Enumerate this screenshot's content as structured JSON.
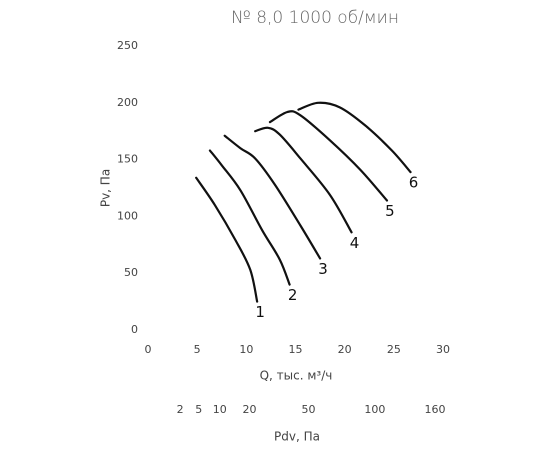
{
  "chart_data": {
    "type": "line",
    "title": "№ 8,0 1000 об/мин",
    "x_label": "Q, тыс. м³/ч",
    "y_label": "Pv, Па",
    "x2_label": "Pdv, Па",
    "xlim": [
      0,
      30
    ],
    "xticks": [
      0,
      5,
      10,
      15,
      20,
      25,
      30
    ],
    "ylim": [
      0,
      250
    ],
    "yticks": [
      0,
      50,
      100,
      150,
      200,
      250
    ],
    "x2scale": "sqrt",
    "x2lim": [
      0,
      169
    ],
    "x2ticks": [
      2,
      5,
      10,
      20,
      50,
      100,
      160
    ],
    "series": [
      {
        "name": "1",
        "color": "#111111",
        "x": [
          4.9,
          6.8,
          8.9,
          10.4,
          11.1
        ],
        "values": [
          134,
          110,
          79,
          53,
          25
        ]
      },
      {
        "name": "2",
        "color": "#111111",
        "x": [
          6.3,
          7.5,
          9.4,
          11.6,
          13.4,
          14.4
        ],
        "values": [
          158,
          145,
          123,
          88,
          62,
          40
        ]
      },
      {
        "name": "3",
        "color": "#111111",
        "x": [
          7.8,
          9.4,
          10.9,
          12.9,
          15.5,
          17.5
        ],
        "values": [
          171,
          160,
          151,
          128,
          92,
          63
        ]
      },
      {
        "name": "4",
        "color": "#111111",
        "x": [
          10.9,
          12.2,
          13.4,
          15.5,
          18.5,
          20.7
        ],
        "values": [
          175,
          178,
          172,
          151,
          119,
          86
        ]
      },
      {
        "name": "5",
        "color": "#111111",
        "x": [
          12.4,
          14.2,
          15.5,
          18.5,
          21.6,
          24.3
        ],
        "values": [
          183,
          192,
          189,
          167,
          141,
          114
        ]
      },
      {
        "name": "6",
        "color": "#111111",
        "x": [
          15.3,
          17.3,
          19.5,
          22.1,
          24.8,
          26.7
        ],
        "values": [
          194,
          200,
          196,
          180,
          158,
          139
        ]
      }
    ]
  }
}
